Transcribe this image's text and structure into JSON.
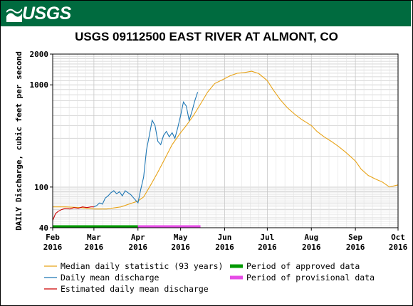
{
  "header": {
    "logo_text": "USGS",
    "brand_color": "#006b3f"
  },
  "chart_data": {
    "type": "line",
    "title": "USGS 09112500 EAST RIVER AT ALMONT, CO",
    "ylabel": "DAILY Discharge, cubic feet per second",
    "xlabel": "",
    "y_scale": "log",
    "ylim": [
      40,
      2000
    ],
    "y_ticks": [
      40,
      100,
      1000,
      2000
    ],
    "y_tick_labels": [
      "40",
      "100",
      "1000",
      "2000"
    ],
    "x_range": [
      "2016-02-01",
      "2016-10-01"
    ],
    "x_tick_dates": [
      "2016-02-01",
      "2016-03-01",
      "2016-04-01",
      "2016-05-01",
      "2016-06-01",
      "2016-07-01",
      "2016-08-01",
      "2016-09-01",
      "2016-10-01"
    ],
    "x_tick_labels": [
      [
        "Feb",
        "2016"
      ],
      [
        "Mar",
        "2016"
      ],
      [
        "Apr",
        "2016"
      ],
      [
        "May",
        "2016"
      ],
      [
        "Jun",
        "2016"
      ],
      [
        "Jul",
        "2016"
      ],
      [
        "Aug",
        "2016"
      ],
      [
        "Sep",
        "2016"
      ],
      [
        "Oct",
        "2016"
      ]
    ],
    "grid": true,
    "series": [
      {
        "name": "Median daily statistic (93 years)",
        "color": "#e8a317",
        "points": [
          [
            "2016-02-01",
            64
          ],
          [
            "2016-02-10",
            64
          ],
          [
            "2016-02-20",
            63
          ],
          [
            "2016-03-01",
            61
          ],
          [
            "2016-03-10",
            61
          ],
          [
            "2016-03-20",
            64
          ],
          [
            "2016-04-01",
            73
          ],
          [
            "2016-04-05",
            80
          ],
          [
            "2016-04-10",
            105
          ],
          [
            "2016-04-15",
            140
          ],
          [
            "2016-04-20",
            190
          ],
          [
            "2016-04-25",
            260
          ],
          [
            "2016-05-01",
            340
          ],
          [
            "2016-05-05",
            400
          ],
          [
            "2016-05-10",
            500
          ],
          [
            "2016-05-15",
            650
          ],
          [
            "2016-05-20",
            850
          ],
          [
            "2016-05-25",
            1030
          ],
          [
            "2016-06-01",
            1150
          ],
          [
            "2016-06-05",
            1230
          ],
          [
            "2016-06-10",
            1300
          ],
          [
            "2016-06-15",
            1320
          ],
          [
            "2016-06-20",
            1360
          ],
          [
            "2016-06-25",
            1290
          ],
          [
            "2016-07-01",
            1100
          ],
          [
            "2016-07-05",
            900
          ],
          [
            "2016-07-10",
            720
          ],
          [
            "2016-07-15",
            600
          ],
          [
            "2016-07-20",
            520
          ],
          [
            "2016-07-25",
            460
          ],
          [
            "2016-08-01",
            400
          ],
          [
            "2016-08-05",
            350
          ],
          [
            "2016-08-10",
            310
          ],
          [
            "2016-08-15",
            280
          ],
          [
            "2016-08-20",
            250
          ],
          [
            "2016-08-25",
            220
          ],
          [
            "2016-09-01",
            180
          ],
          [
            "2016-09-05",
            150
          ],
          [
            "2016-09-10",
            130
          ],
          [
            "2016-09-15",
            120
          ],
          [
            "2016-09-20",
            112
          ],
          [
            "2016-09-25",
            100
          ],
          [
            "2016-10-01",
            105
          ]
        ]
      },
      {
        "name": "Daily mean discharge",
        "color": "#1f77b4",
        "points": [
          [
            "2016-03-01",
            64
          ],
          [
            "2016-03-03",
            66
          ],
          [
            "2016-03-05",
            70
          ],
          [
            "2016-03-07",
            68
          ],
          [
            "2016-03-09",
            78
          ],
          [
            "2016-03-11",
            82
          ],
          [
            "2016-03-13",
            88
          ],
          [
            "2016-03-15",
            92
          ],
          [
            "2016-03-17",
            86
          ],
          [
            "2016-03-19",
            90
          ],
          [
            "2016-03-21",
            82
          ],
          [
            "2016-03-23",
            92
          ],
          [
            "2016-03-25",
            88
          ],
          [
            "2016-03-27",
            84
          ],
          [
            "2016-03-29",
            78
          ],
          [
            "2016-04-01",
            70
          ],
          [
            "2016-04-03",
            95
          ],
          [
            "2016-04-05",
            125
          ],
          [
            "2016-04-07",
            230
          ],
          [
            "2016-04-09",
            320
          ],
          [
            "2016-04-11",
            450
          ],
          [
            "2016-04-13",
            400
          ],
          [
            "2016-04-15",
            280
          ],
          [
            "2016-04-17",
            260
          ],
          [
            "2016-04-19",
            320
          ],
          [
            "2016-04-21",
            350
          ],
          [
            "2016-04-23",
            310
          ],
          [
            "2016-04-25",
            340
          ],
          [
            "2016-04-27",
            300
          ],
          [
            "2016-04-29",
            380
          ],
          [
            "2016-05-01",
            500
          ],
          [
            "2016-05-03",
            680
          ],
          [
            "2016-05-05",
            620
          ],
          [
            "2016-05-07",
            450
          ],
          [
            "2016-05-09",
            550
          ],
          [
            "2016-05-11",
            700
          ],
          [
            "2016-05-13",
            850
          ]
        ]
      },
      {
        "name": "Estimated daily mean discharge",
        "color": "#cc0000",
        "points": [
          [
            "2016-02-01",
            47
          ],
          [
            "2016-02-03",
            55
          ],
          [
            "2016-02-05",
            58
          ],
          [
            "2016-02-07",
            60
          ],
          [
            "2016-02-10",
            62
          ],
          [
            "2016-02-13",
            61
          ],
          [
            "2016-02-16",
            63
          ],
          [
            "2016-02-19",
            62
          ],
          [
            "2016-02-22",
            64
          ],
          [
            "2016-02-25",
            63
          ],
          [
            "2016-02-28",
            64
          ],
          [
            "2016-03-01",
            64
          ]
        ]
      }
    ],
    "periods": [
      {
        "name": "Period of approved data",
        "color": "#009900",
        "start": "2016-02-01",
        "end": "2016-04-01"
      },
      {
        "name": "Period of provisional data",
        "color": "#e64ce6",
        "start": "2016-04-01",
        "end": "2016-05-15"
      }
    ]
  }
}
